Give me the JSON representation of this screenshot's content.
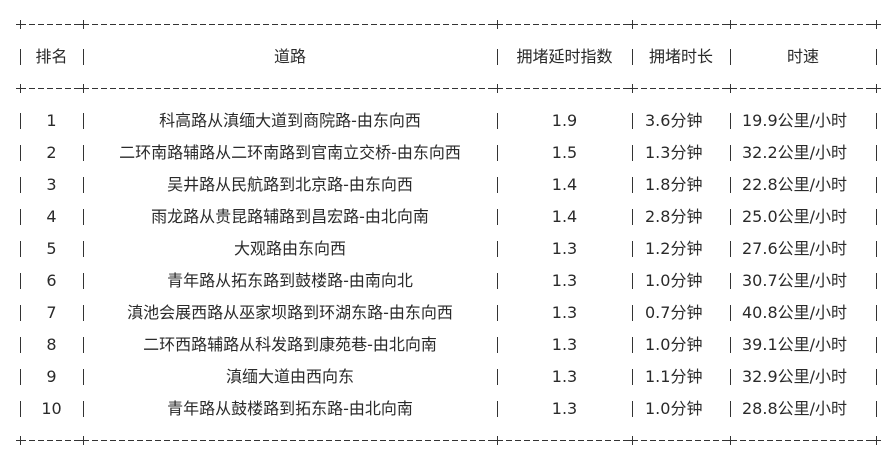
{
  "table": {
    "headers": {
      "rank": "排名",
      "road": "道路",
      "delay_index": "拥堵延时指数",
      "duration": "拥堵时长",
      "speed": "时速"
    },
    "rows": [
      {
        "rank": "1",
        "road": "科高路从滇缅大道到商院路-由东向西",
        "delay_index": "1.9",
        "duration": "3.6分钟",
        "speed": "19.9公里/小时"
      },
      {
        "rank": "2",
        "road": "二环南路辅路从二环南路到官南立交桥-由东向西",
        "delay_index": "1.5",
        "duration": "1.3分钟",
        "speed": "32.2公里/小时"
      },
      {
        "rank": "3",
        "road": "吴井路从民航路到北京路-由东向西",
        "delay_index": "1.4",
        "duration": "1.8分钟",
        "speed": "22.8公里/小时"
      },
      {
        "rank": "4",
        "road": "雨龙路从贵昆路辅路到昌宏路-由北向南",
        "delay_index": "1.4",
        "duration": "2.8分钟",
        "speed": "25.0公里/小时"
      },
      {
        "rank": "5",
        "road": "大观路由东向西",
        "delay_index": "1.3",
        "duration": "1.2分钟",
        "speed": "27.6公里/小时"
      },
      {
        "rank": "6",
        "road": "青年路从拓东路到鼓楼路-由南向北",
        "delay_index": "1.3",
        "duration": "1.0分钟",
        "speed": "30.7公里/小时"
      },
      {
        "rank": "7",
        "road": "滇池会展西路从巫家坝路到环湖东路-由东向西",
        "delay_index": "1.3",
        "duration": "0.7分钟",
        "speed": "40.8公里/小时"
      },
      {
        "rank": "8",
        "road": "二环西路辅路从科发路到康苑巷-由北向南",
        "delay_index": "1.3",
        "duration": "1.0分钟",
        "speed": "39.1公里/小时"
      },
      {
        "rank": "9",
        "road": "滇缅大道由西向东",
        "delay_index": "1.3",
        "duration": "1.1分钟",
        "speed": "32.9公里/小时"
      },
      {
        "rank": "10",
        "road": "青年路从鼓楼路到拓东路-由北向南",
        "delay_index": "1.3",
        "duration": "1.0分钟",
        "speed": "28.8公里/小时"
      }
    ]
  }
}
